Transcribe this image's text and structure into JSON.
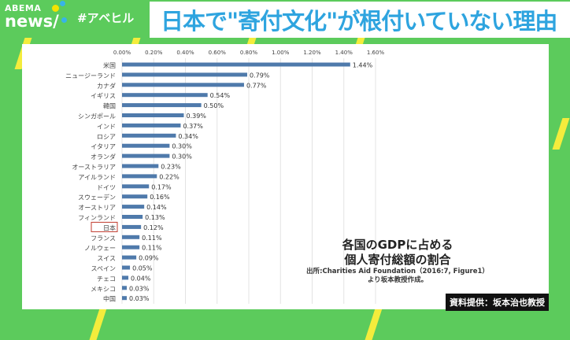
{
  "header": {
    "logo_top": "ABEMA",
    "logo_bottom": "news/",
    "hashtag": "#アベヒル",
    "title": "日本で\"寄付文化\"が根付いていない理由"
  },
  "colors": {
    "background": "#5ccb5c",
    "bar": "#4f7aab",
    "title": "#2ea4df",
    "highlight": "#c0392b"
  },
  "chart_data": {
    "type": "bar",
    "orientation": "horizontal",
    "categories": [
      "米国",
      "ニュージーランド",
      "カナダ",
      "イギリス",
      "韓国",
      "シンガポール",
      "インド",
      "ロシア",
      "イタリア",
      "オランダ",
      "オーストラリア",
      "アイルランド",
      "ドイツ",
      "スウェーデン",
      "オーストリア",
      "フィンランド",
      "日本",
      "フランス",
      "ノルウェー",
      "スイス",
      "スペイン",
      "チェコ",
      "メキシコ",
      "中国"
    ],
    "values": [
      1.44,
      0.79,
      0.77,
      0.54,
      0.5,
      0.39,
      0.37,
      0.34,
      0.3,
      0.3,
      0.23,
      0.22,
      0.17,
      0.16,
      0.14,
      0.13,
      0.12,
      0.11,
      0.11,
      0.09,
      0.05,
      0.04,
      0.03,
      0.03
    ],
    "value_labels": [
      "1.44%",
      "0.79%",
      "0.77%",
      "0.54%",
      "0.50%",
      "0.39%",
      "0.37%",
      "0.34%",
      "0.30%",
      "0.30%",
      "0.23%",
      "0.22%",
      "0.17%",
      "0.16%",
      "0.14%",
      "0.13%",
      "0.12%",
      "0.11%",
      "0.11%",
      "0.09%",
      "0.05%",
      "0.04%",
      "0.03%",
      "0.03%"
    ],
    "xticks": [
      "0.00%",
      "0.20%",
      "0.40%",
      "0.60%",
      "0.80%",
      "1.00%",
      "1.20%",
      "1.40%",
      "1.60%"
    ],
    "xlim": [
      0,
      1.6
    ],
    "grid": true,
    "highlighted_category": "日本",
    "title": "各国のGDPに占める\n個人寄付総額の割合"
  },
  "note": {
    "line1": "各国のGDPに占める",
    "line2": "個人寄付総額の割合",
    "source1": "出所:Charities Aid Foundation（2016:7, Figure1）",
    "source2": "より坂本教授作成。"
  },
  "credit": "資料提供：坂本治也教授"
}
